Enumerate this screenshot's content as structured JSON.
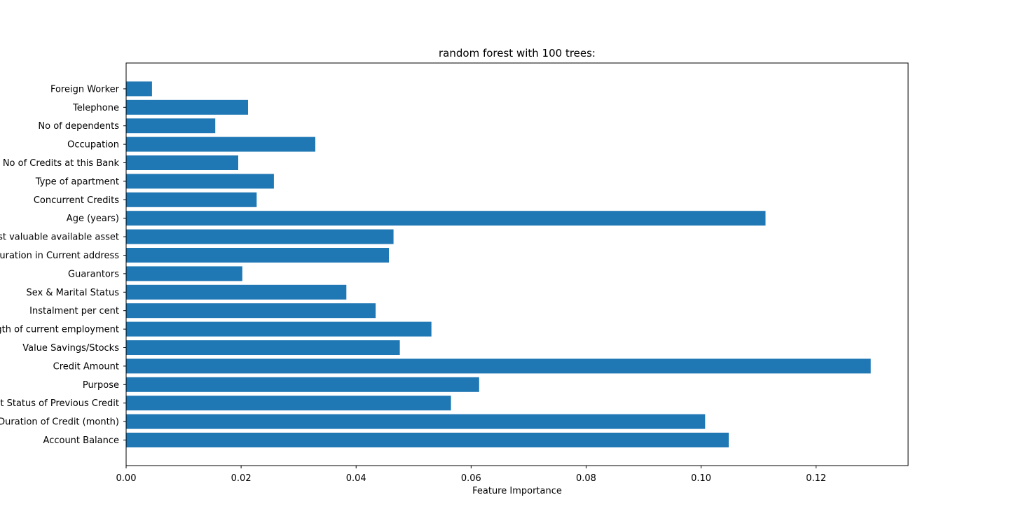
{
  "chart_data": {
    "type": "bar",
    "orientation": "horizontal",
    "title": "random forest with 100 trees:",
    "xlabel": "Feature Importance",
    "ylabel": "",
    "xlim": [
      0,
      0.136
    ],
    "xticks": [
      0.0,
      0.02,
      0.04,
      0.06,
      0.08,
      0.1,
      0.12
    ],
    "xtick_labels": [
      "0.00",
      "0.02",
      "0.04",
      "0.06",
      "0.08",
      "0.10",
      "0.12"
    ],
    "categories": [
      "Account Balance",
      "Duration of Credit (month)",
      "Payment Status of Previous Credit",
      "Purpose",
      "Credit Amount",
      "Value Savings/Stocks",
      "Length of current employment",
      "Instalment per cent",
      "Sex & Marital Status",
      "Guarantors",
      "Duration in Current address",
      "Most valuable available asset",
      "Age (years)",
      "Concurrent Credits",
      "Type of apartment",
      "No of Credits at this Bank",
      "Occupation",
      "No of dependents",
      "Telephone",
      "Foreign Worker"
    ],
    "values": [
      0.1048,
      0.1007,
      0.0565,
      0.0614,
      0.1295,
      0.0476,
      0.0531,
      0.0434,
      0.0383,
      0.0202,
      0.0457,
      0.0465,
      0.1112,
      0.0227,
      0.0257,
      0.0195,
      0.0329,
      0.0155,
      0.0212,
      0.0045
    ],
    "bar_color": "#1f77b4",
    "grid": false,
    "legend": "none"
  }
}
